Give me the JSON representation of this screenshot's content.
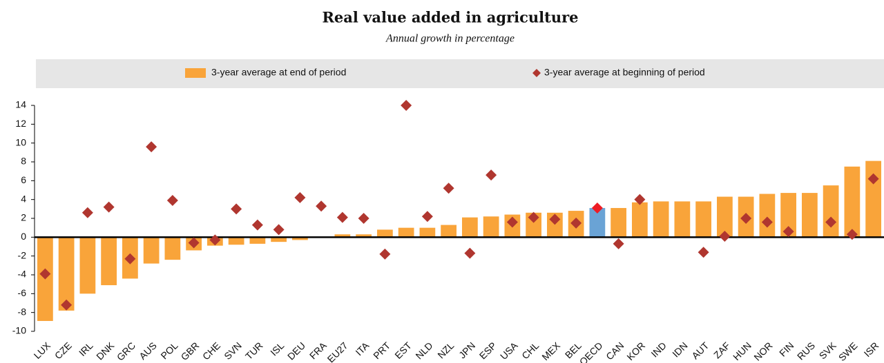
{
  "chart_data": {
    "type": "bar-scatter",
    "title": "Real value added in agriculture",
    "subtitle": "Annual growth in percentage",
    "categories": [
      "LUX",
      "CZE",
      "IRL",
      "DNK",
      "GRC",
      "AUS",
      "POL",
      "GBR",
      "CHE",
      "SVN",
      "TUR",
      "ISL",
      "DEU",
      "FRA",
      "EU27",
      "ITA",
      "PRT",
      "EST",
      "NLD",
      "NZL",
      "JPN",
      "ESP",
      "USA",
      "CHL",
      "MEX",
      "BEL",
      "OECD",
      "CAN",
      "KOR",
      "IND",
      "IDN",
      "AUT",
      "ZAF",
      "HUN",
      "NOR",
      "FIN",
      "RUS",
      "SVK",
      "SWE",
      "ISR"
    ],
    "series": [
      {
        "name": "3-year average at end of period",
        "color": "#f9a43a",
        "mark": "bar",
        "values": [
          -8.9,
          -7.8,
          -6,
          -5.1,
          -4.4,
          -2.8,
          -2.4,
          -1.4,
          -0.9,
          -0.8,
          -0.7,
          -0.5,
          -0.3,
          0,
          0.3,
          0.3,
          0.8,
          1.0,
          1.0,
          1.3,
          2.1,
          2.2,
          2.4,
          2.6,
          2.6,
          2.8,
          3.1,
          3.1,
          3.7,
          3.8,
          3.8,
          3.8,
          4.3,
          4.3,
          4.6,
          4.7,
          4.7,
          5.5,
          7.5,
          8.1
        ]
      },
      {
        "name": "3-year average at beginning of period",
        "color": "#b0362f",
        "mark": "diamond",
        "values": [
          -3.9,
          -7.2,
          2.6,
          3.2,
          -2.3,
          9.6,
          3.9,
          -0.6,
          -0.3,
          3.0,
          1.3,
          0.8,
          4.2,
          3.3,
          2.1,
          2.0,
          -1.8,
          14,
          2.2,
          5.2,
          -1.7,
          6.6,
          1.6,
          2.1,
          1.9,
          1.5,
          3.1,
          -0.7,
          4.0,
          null,
          null,
          -1.6,
          0.1,
          2.0,
          1.6,
          0.6,
          null,
          1.6,
          0.3,
          6.2
        ]
      }
    ],
    "highlight": {
      "category": "OECD",
      "colors": [
        "#6aa3d5",
        "#ed1c24"
      ]
    },
    "ylim": [
      -10,
      14
    ],
    "yticks": [
      -10,
      -8,
      -6,
      -4,
      -2,
      0,
      2,
      4,
      6,
      8,
      10,
      12,
      14
    ]
  }
}
